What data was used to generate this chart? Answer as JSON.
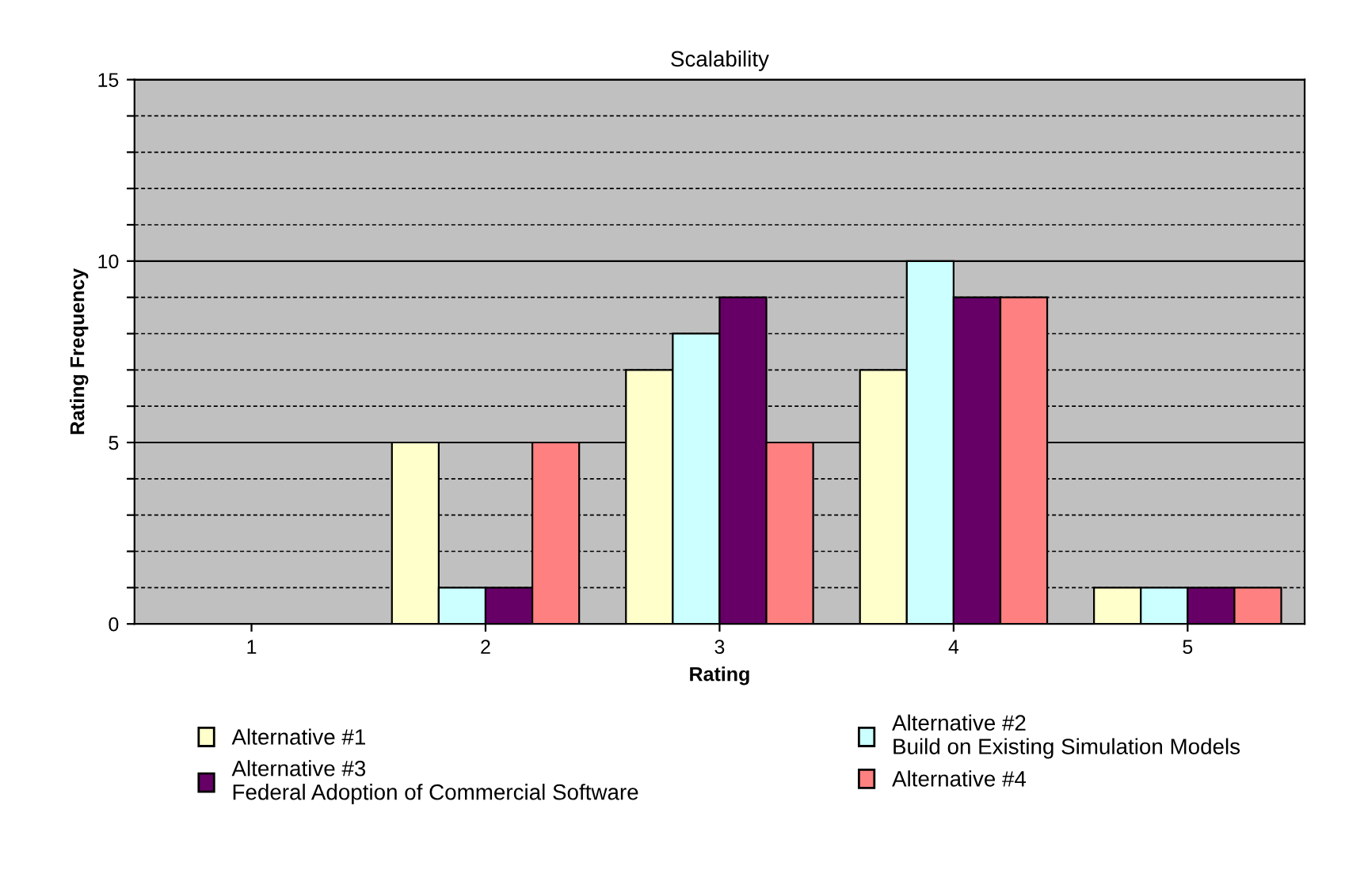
{
  "chart_data": {
    "type": "bar",
    "title": "Scalability",
    "xlabel": "Rating",
    "ylabel": "Rating Frequency",
    "categories": [
      "1",
      "2",
      "3",
      "4",
      "5"
    ],
    "series": [
      {
        "name": "Alternative #1",
        "color": "#ffffcc",
        "values": [
          0,
          5,
          7,
          7,
          1
        ]
      },
      {
        "name": "Alternative #2\nBuild on Existing Simulation Models",
        "color": "#ccffff",
        "values": [
          0,
          1,
          8,
          10,
          1
        ]
      },
      {
        "name": "Alternative #3\nFederal Adoption of Commercial Software",
        "color": "#660066",
        "values": [
          0,
          1,
          9,
          9,
          1
        ]
      },
      {
        "name": "Alternative #4",
        "color": "#ff8080",
        "values": [
          0,
          5,
          5,
          9,
          1
        ]
      }
    ],
    "ylim": [
      0,
      15
    ],
    "yticks": [
      0,
      {
        "value": 1,
        "label": null
      },
      {
        "value": 2,
        "label": null
      },
      {
        "value": 3,
        "label": null
      },
      {
        "value": 4,
        "label": null
      },
      5,
      {
        "value": 6,
        "label": null
      },
      {
        "value": 7,
        "label": null
      },
      {
        "value": 8,
        "label": null
      },
      {
        "value": 9,
        "label": null
      },
      10,
      {
        "value": 11,
        "label": null
      },
      {
        "value": 12,
        "label": null
      },
      {
        "value": 13,
        "label": null
      },
      {
        "value": 14,
        "label": null
      },
      15
    ],
    "grid": "y",
    "legend": "bottom"
  }
}
